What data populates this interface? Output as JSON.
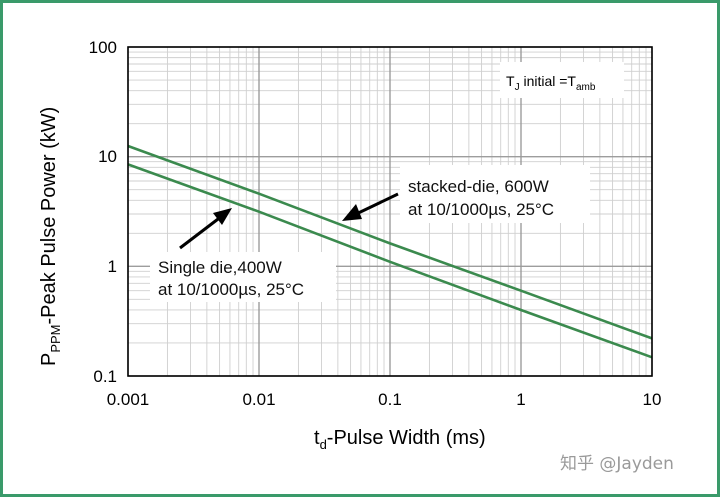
{
  "chart_data": {
    "type": "line",
    "xscale": "log",
    "yscale": "log",
    "xlim": [
      0.001,
      10
    ],
    "ylim": [
      0.1,
      100
    ],
    "grid": true,
    "x_ticks": [
      "0.001",
      "0.01",
      "0.1",
      "1",
      "10"
    ],
    "y_ticks": [
      "100",
      "10",
      "1",
      "0.1"
    ],
    "xlabel": {
      "main": "t",
      "sub": "d",
      "rest": "-Pulse Width (ms)"
    },
    "ylabel": {
      "main": "P",
      "sub": "PPM",
      "rest": "-Peak Pulse Power (kW)"
    },
    "condition": {
      "t": "T",
      "t_sub": "J",
      "mid": " initial =T",
      "amb_sub": "amb"
    },
    "series": [
      {
        "x": [
          0.001,
          0.01,
          0.1,
          1,
          10
        ],
        "values": [
          12.5,
          4.6,
          1.62,
          0.6,
          0.22
        ]
      },
      {
        "x": [
          0.001,
          0.01,
          0.1,
          1,
          10
        ],
        "values": [
          8.5,
          3.15,
          1.1,
          0.4,
          0.148
        ]
      }
    ],
    "annotations": [
      {
        "lines": [
          "stacked-die, 600W",
          "at 10/1000µs, 25°C"
        ]
      },
      {
        "lines": [
          "Single die,400W",
          "at 10/1000µs, 25°C"
        ]
      }
    ],
    "line_color": "#3b8a4e"
  },
  "watermark": "知乎 @Jayden"
}
